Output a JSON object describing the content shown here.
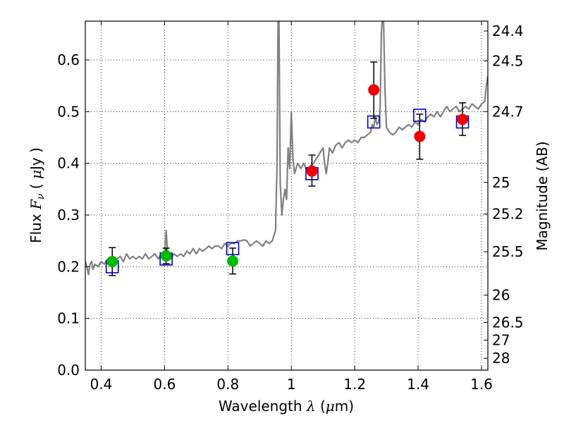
{
  "chart_data": {
    "type": "scatter",
    "xlabel": "Wavelength  λ (μm)",
    "ylabel": "Flux  F_ν  ( μJy )",
    "y2label": "Magnitude (AB)",
    "xlim": [
      0.35,
      1.62
    ],
    "ylim": [
      0.0,
      0.675
    ],
    "grid": true,
    "x_ticks": [
      {
        "value": 0.4,
        "label": "0.4"
      },
      {
        "value": 0.6,
        "label": "0.6"
      },
      {
        "value": 0.8,
        "label": "0.8"
      },
      {
        "value": 1.0,
        "label": "1"
      },
      {
        "value": 1.2,
        "label": "1.2"
      },
      {
        "value": 1.4,
        "label": "1.4"
      },
      {
        "value": 1.6,
        "label": "1.6"
      }
    ],
    "y_ticks": [
      {
        "value": 0.0,
        "label": "0.0"
      },
      {
        "value": 0.1,
        "label": "0.1"
      },
      {
        "value": 0.2,
        "label": "0.2"
      },
      {
        "value": 0.3,
        "label": "0.3"
      },
      {
        "value": 0.4,
        "label": "0.4"
      },
      {
        "value": 0.5,
        "label": "0.5"
      },
      {
        "value": 0.6,
        "label": "0.6"
      }
    ],
    "y2_ticks": [
      {
        "flux": 0.656,
        "label": "24.4"
      },
      {
        "flux": 0.598,
        "label": "24.5"
      },
      {
        "flux": 0.5,
        "label": "24.7"
      },
      {
        "flux": 0.363,
        "label": "25"
      },
      {
        "flux": 0.302,
        "label": "25.2"
      },
      {
        "flux": 0.229,
        "label": "25.5"
      },
      {
        "flux": 0.145,
        "label": "26"
      },
      {
        "flux": 0.092,
        "label": "26.5"
      },
      {
        "flux": 0.058,
        "label": "27"
      },
      {
        "flux": 0.023,
        "label": "28"
      }
    ],
    "series": [
      {
        "kind": "line",
        "color": "#808080",
        "points": [
          [
            0.35,
            0.21
          ],
          [
            0.355,
            0.2
          ],
          [
            0.36,
            0.185
          ],
          [
            0.365,
            0.205
          ],
          [
            0.37,
            0.21
          ],
          [
            0.375,
            0.195
          ],
          [
            0.38,
            0.205
          ],
          [
            0.39,
            0.2
          ],
          [
            0.4,
            0.21
          ],
          [
            0.41,
            0.205
          ],
          [
            0.42,
            0.215
          ],
          [
            0.43,
            0.21
          ],
          [
            0.44,
            0.2
          ],
          [
            0.45,
            0.215
          ],
          [
            0.46,
            0.22
          ],
          [
            0.47,
            0.21
          ],
          [
            0.48,
            0.225
          ],
          [
            0.49,
            0.215
          ],
          [
            0.5,
            0.22
          ],
          [
            0.51,
            0.215
          ],
          [
            0.52,
            0.22
          ],
          [
            0.53,
            0.215
          ],
          [
            0.54,
            0.225
          ],
          [
            0.55,
            0.215
          ],
          [
            0.56,
            0.22
          ],
          [
            0.57,
            0.225
          ],
          [
            0.58,
            0.215
          ],
          [
            0.59,
            0.225
          ],
          [
            0.6,
            0.22
          ],
          [
            0.605,
            0.27
          ],
          [
            0.61,
            0.225
          ],
          [
            0.62,
            0.215
          ],
          [
            0.63,
            0.225
          ],
          [
            0.64,
            0.22
          ],
          [
            0.65,
            0.225
          ],
          [
            0.66,
            0.22
          ],
          [
            0.67,
            0.23
          ],
          [
            0.68,
            0.225
          ],
          [
            0.69,
            0.235
          ],
          [
            0.7,
            0.225
          ],
          [
            0.71,
            0.235
          ],
          [
            0.72,
            0.23
          ],
          [
            0.73,
            0.235
          ],
          [
            0.74,
            0.24
          ],
          [
            0.75,
            0.235
          ],
          [
            0.76,
            0.24
          ],
          [
            0.77,
            0.24
          ],
          [
            0.78,
            0.235
          ],
          [
            0.79,
            0.245
          ],
          [
            0.8,
            0.24
          ],
          [
            0.81,
            0.245
          ],
          [
            0.82,
            0.245
          ],
          [
            0.83,
            0.25
          ],
          [
            0.84,
            0.25
          ],
          [
            0.85,
            0.252
          ],
          [
            0.86,
            0.25
          ],
          [
            0.87,
            0.24
          ],
          [
            0.88,
            0.245
          ],
          [
            0.89,
            0.25
          ],
          [
            0.9,
            0.245
          ],
          [
            0.91,
            0.24
          ],
          [
            0.92,
            0.25
          ],
          [
            0.93,
            0.245
          ],
          [
            0.94,
            0.25
          ],
          [
            0.945,
            0.26
          ],
          [
            0.95,
            0.27
          ],
          [
            0.955,
            0.4
          ],
          [
            0.958,
            0.68
          ],
          [
            0.961,
            0.675
          ],
          [
            0.965,
            0.36
          ],
          [
            0.97,
            0.3
          ],
          [
            0.975,
            0.33
          ],
          [
            0.98,
            0.35
          ],
          [
            0.985,
            0.33
          ],
          [
            0.99,
            0.43
          ],
          [
            0.995,
            0.39
          ],
          [
            1.0,
            0.5
          ],
          [
            1.005,
            0.41
          ],
          [
            1.01,
            0.38
          ],
          [
            1.02,
            0.4
          ],
          [
            1.03,
            0.39
          ],
          [
            1.04,
            0.4
          ],
          [
            1.05,
            0.385
          ],
          [
            1.06,
            0.395
          ],
          [
            1.07,
            0.4
          ],
          [
            1.08,
            0.41
          ],
          [
            1.09,
            0.42
          ],
          [
            1.1,
            0.43
          ],
          [
            1.105,
            0.4
          ],
          [
            1.11,
            0.38
          ],
          [
            1.115,
            0.4
          ],
          [
            1.12,
            0.43
          ],
          [
            1.13,
            0.42
          ],
          [
            1.14,
            0.435
          ],
          [
            1.15,
            0.44
          ],
          [
            1.16,
            0.43
          ],
          [
            1.17,
            0.44
          ],
          [
            1.18,
            0.445
          ],
          [
            1.19,
            0.44
          ],
          [
            1.2,
            0.445
          ],
          [
            1.21,
            0.44
          ],
          [
            1.22,
            0.45
          ],
          [
            1.23,
            0.45
          ],
          [
            1.24,
            0.455
          ],
          [
            1.25,
            0.46
          ],
          [
            1.255,
            0.475
          ],
          [
            1.26,
            0.47
          ],
          [
            1.265,
            0.49
          ],
          [
            1.27,
            0.475
          ],
          [
            1.275,
            0.48
          ],
          [
            1.28,
            0.5
          ],
          [
            1.284,
            0.65
          ],
          [
            1.287,
            0.68
          ],
          [
            1.291,
            0.675
          ],
          [
            1.295,
            0.55
          ],
          [
            1.3,
            0.47
          ],
          [
            1.31,
            0.46
          ],
          [
            1.32,
            0.455
          ],
          [
            1.33,
            0.46
          ],
          [
            1.34,
            0.47
          ],
          [
            1.35,
            0.465
          ],
          [
            1.36,
            0.47
          ],
          [
            1.37,
            0.475
          ],
          [
            1.38,
            0.47
          ],
          [
            1.39,
            0.48
          ],
          [
            1.4,
            0.475
          ],
          [
            1.41,
            0.485
          ],
          [
            1.42,
            0.48
          ],
          [
            1.43,
            0.49
          ],
          [
            1.44,
            0.495
          ],
          [
            1.45,
            0.49
          ],
          [
            1.46,
            0.5
          ],
          [
            1.47,
            0.49
          ],
          [
            1.48,
            0.5
          ],
          [
            1.49,
            0.51
          ],
          [
            1.5,
            0.5
          ],
          [
            1.51,
            0.505
          ],
          [
            1.52,
            0.51
          ],
          [
            1.53,
            0.5
          ],
          [
            1.54,
            0.505
          ],
          [
            1.55,
            0.51
          ],
          [
            1.56,
            0.505
          ],
          [
            1.57,
            0.515
          ],
          [
            1.58,
            0.51
          ],
          [
            1.59,
            0.505
          ],
          [
            1.6,
            0.515
          ],
          [
            1.61,
            0.52
          ],
          [
            1.615,
            0.55
          ],
          [
            1.62,
            0.57
          ]
        ]
      },
      {
        "kind": "square",
        "color": "#0000cc",
        "points": [
          [
            0.435,
            0.2
          ],
          [
            0.605,
            0.215
          ],
          [
            0.815,
            0.235
          ],
          [
            1.065,
            0.38
          ],
          [
            1.26,
            0.48
          ],
          [
            1.405,
            0.493
          ],
          [
            1.54,
            0.48
          ]
        ]
      },
      {
        "kind": "circle",
        "color": "#00bb00",
        "points": [
          {
            "x": 0.435,
            "y": 0.21,
            "lo": 0.183,
            "hi": 0.237
          },
          {
            "x": 0.605,
            "y": 0.221,
            "lo": 0.206,
            "hi": 0.236
          },
          {
            "x": 0.815,
            "y": 0.211,
            "lo": 0.186,
            "hi": 0.236
          }
        ]
      },
      {
        "kind": "circle",
        "color": "#ee0000",
        "points": [
          {
            "x": 1.065,
            "y": 0.385,
            "lo": 0.356,
            "hi": 0.416
          },
          {
            "x": 1.26,
            "y": 0.542,
            "lo": 0.487,
            "hi": 0.596
          },
          {
            "x": 1.405,
            "y": 0.452,
            "lo": 0.408,
            "hi": 0.495
          },
          {
            "x": 1.54,
            "y": 0.485,
            "lo": 0.454,
            "hi": 0.517
          }
        ]
      }
    ]
  }
}
